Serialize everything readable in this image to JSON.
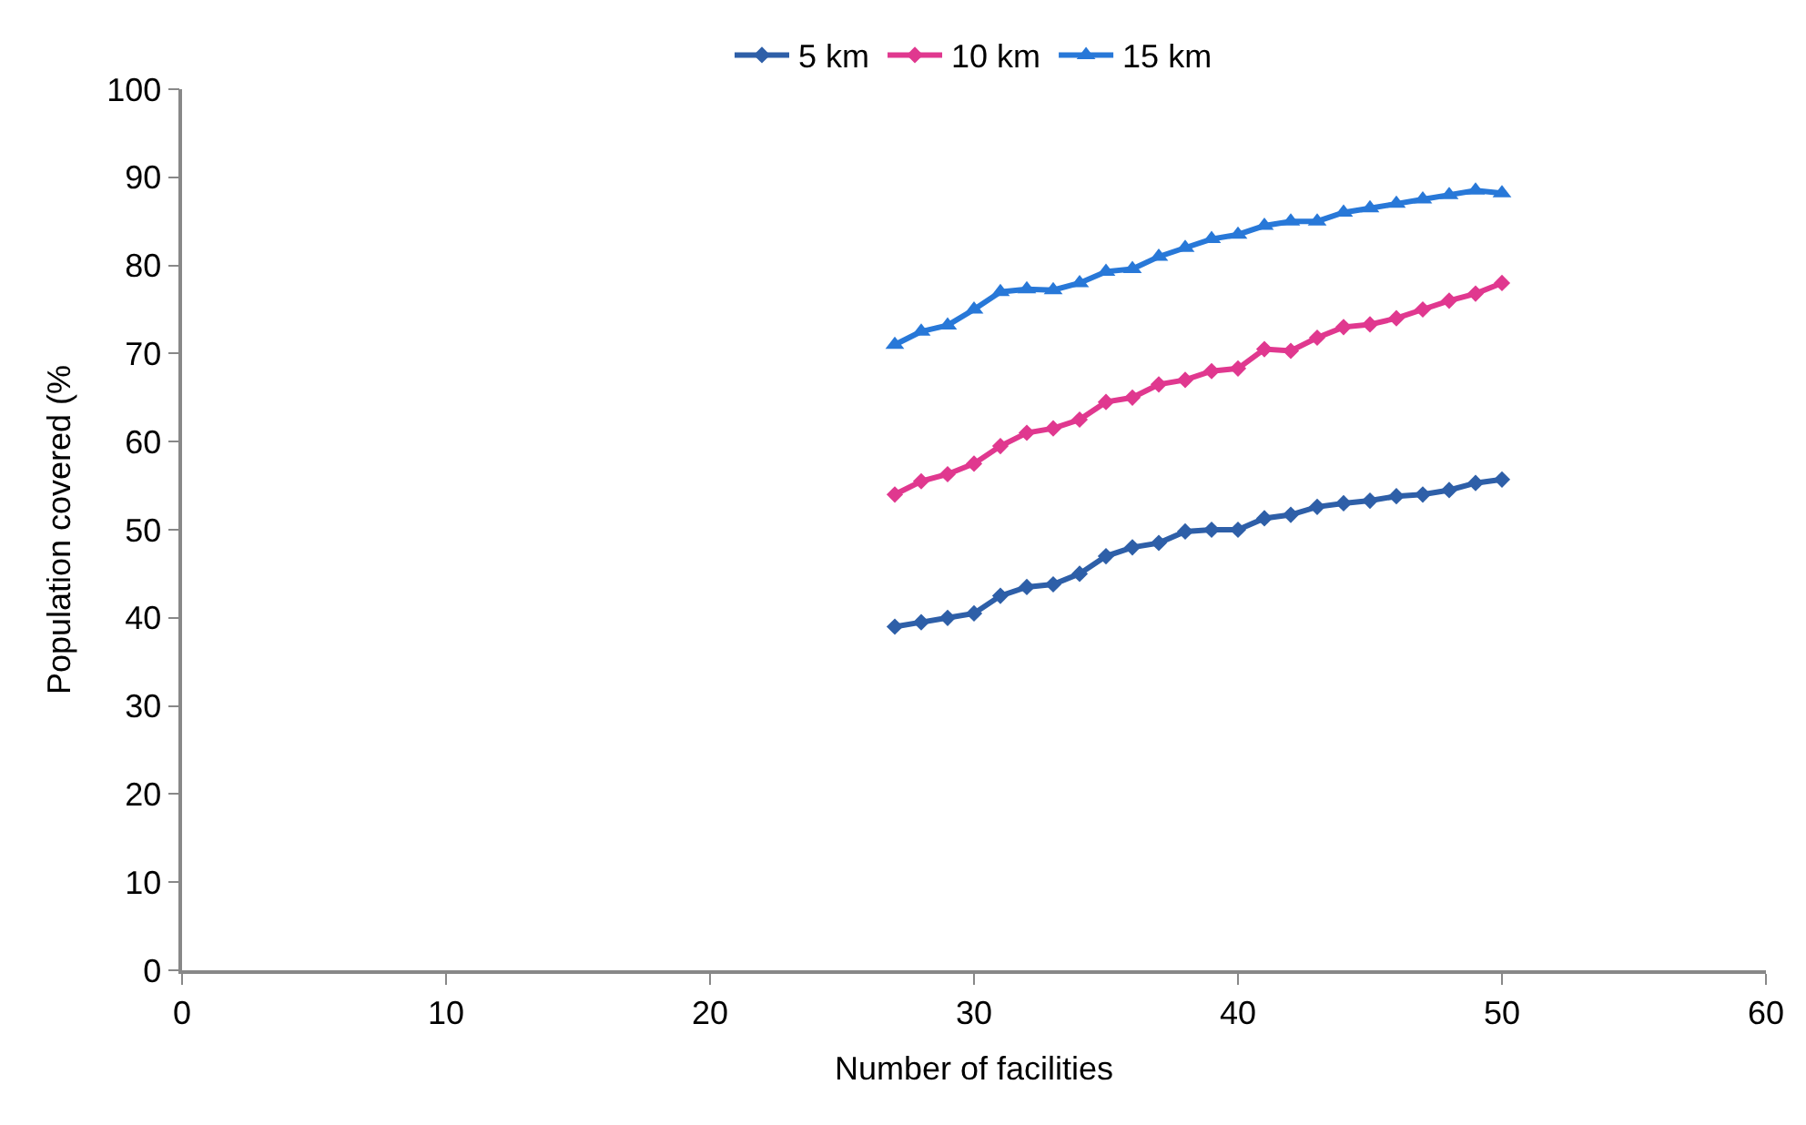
{
  "chart_data": {
    "type": "line",
    "xlabel": "Number of facilities",
    "ylabel": "Population covered (%",
    "x": [
      27,
      28,
      29,
      30,
      31,
      32,
      33,
      34,
      35,
      36,
      37,
      38,
      39,
      40,
      41,
      42,
      43,
      44,
      45,
      46,
      47,
      48,
      49,
      50
    ],
    "series": [
      {
        "name": "5 km",
        "color": "#2e5fa8",
        "marker": "diamond",
        "values": [
          39,
          39.5,
          40,
          40.5,
          42.5,
          43.5,
          43.8,
          45,
          47,
          48,
          48.5,
          49.8,
          50,
          50,
          51.3,
          51.7,
          52.6,
          53,
          53.3,
          53.8,
          54,
          54.5,
          55.3,
          55.7
        ]
      },
      {
        "name": "10 km",
        "color": "#e0388f",
        "marker": "diamond",
        "values": [
          54,
          55.5,
          56.3,
          57.5,
          59.5,
          61,
          61.5,
          62.5,
          64.5,
          65,
          66.5,
          67,
          68,
          68.3,
          70.5,
          70.3,
          71.8,
          73,
          73.3,
          74,
          75,
          76,
          76.8,
          78
        ]
      },
      {
        "name": "15 km",
        "color": "#2878d8",
        "marker": "triangle",
        "values": [
          71,
          72.5,
          73.2,
          75,
          77,
          77.3,
          77.2,
          78,
          79.3,
          79.6,
          81,
          82,
          83,
          83.5,
          84.5,
          85,
          85,
          86,
          86.5,
          87,
          87.5,
          88,
          88.5,
          88.2
        ]
      }
    ],
    "xlim": [
      0,
      60
    ],
    "xticks": [
      0,
      10,
      20,
      30,
      40,
      50,
      60
    ],
    "ylim": [
      0,
      100
    ],
    "yticks": [
      0,
      10,
      20,
      30,
      40,
      50,
      60,
      70,
      80,
      90,
      100
    ],
    "legend": "top",
    "line_style": "solid"
  }
}
